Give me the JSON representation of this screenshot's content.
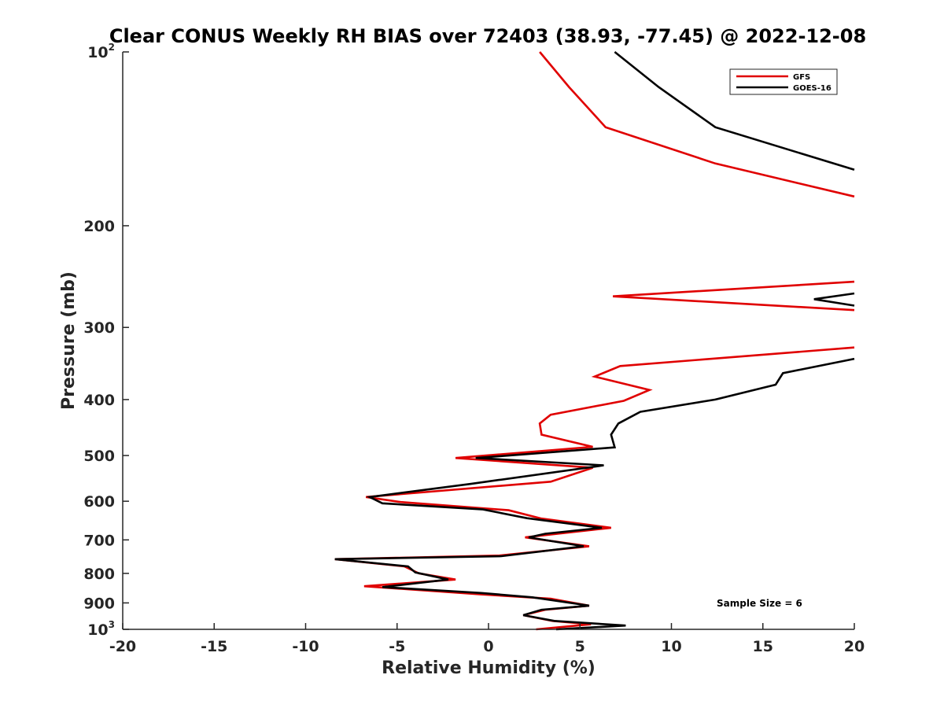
{
  "chart_data": {
    "type": "line",
    "title": "Clear CONUS Weekly RH BIAS over 72403 (38.93, -77.45) @ 2022-12-08",
    "xlabel": "Relative Humidity (%)",
    "ylabel": "Pressure (mb)",
    "xlim": [
      -20,
      20
    ],
    "ylim": [
      100,
      1000
    ],
    "yscale": "log",
    "y_reversed": true,
    "x_ticks": [
      "-20",
      "-15",
      "-10",
      "-5",
      "0",
      "5",
      "10",
      "15",
      "20"
    ],
    "y_ticks": [
      {
        "value": 100,
        "base": "10",
        "exp": "2"
      },
      {
        "value": 200,
        "base": "200",
        "exp": ""
      },
      {
        "value": 300,
        "base": "300",
        "exp": ""
      },
      {
        "value": 400,
        "base": "400",
        "exp": ""
      },
      {
        "value": 500,
        "base": "500",
        "exp": ""
      },
      {
        "value": 600,
        "base": "600",
        "exp": ""
      },
      {
        "value": 700,
        "base": "700",
        "exp": ""
      },
      {
        "value": 800,
        "base": "800",
        "exp": ""
      },
      {
        "value": 900,
        "base": "900",
        "exp": ""
      },
      {
        "value": 1000,
        "base": "10",
        "exp": "3"
      }
    ],
    "legend_position": "top-right",
    "annotation": "Sample Size = 6",
    "series": [
      {
        "name": "GFS",
        "color": "#e00000",
        "points": [
          [
            2.8,
            100
          ],
          [
            4.4,
            115
          ],
          [
            6.4,
            135
          ],
          [
            12.4,
            156
          ],
          [
            20,
            178
          ],
          [
            null,
            null
          ],
          [
            20,
            250
          ],
          [
            6.8,
            265
          ],
          [
            20,
            280
          ],
          [
            null,
            null
          ],
          [
            20,
            325
          ],
          [
            7.2,
            350
          ],
          [
            5.8,
            365
          ],
          [
            8.8,
            385
          ],
          [
            7.4,
            402
          ],
          [
            3.4,
            425
          ],
          [
            2.8,
            440
          ],
          [
            2.9,
            460
          ],
          [
            5.7,
            483
          ],
          [
            -1.8,
            505
          ],
          [
            5.7,
            525
          ],
          [
            3.4,
            555
          ],
          [
            -6.7,
            590
          ],
          [
            -4.8,
            602
          ],
          [
            1.1,
            622
          ],
          [
            2.9,
            643
          ],
          [
            6.7,
            667
          ],
          [
            2,
            693
          ],
          [
            5.5,
            718
          ],
          [
            0.6,
            745
          ],
          [
            -8.4,
            756
          ],
          [
            -4.6,
            778
          ],
          [
            -3.8,
            800
          ],
          [
            -1.8,
            820
          ],
          [
            -6.8,
            842
          ],
          [
            -0.4,
            870
          ],
          [
            3.4,
            885
          ],
          [
            5.5,
            910
          ],
          [
            3.1,
            925
          ],
          [
            1.9,
            945
          ],
          [
            3.5,
            967
          ],
          [
            5.6,
            980
          ],
          [
            2.6,
            1000
          ]
        ]
      },
      {
        "name": "GOES-16",
        "color": "#000000",
        "points": [
          [
            6.9,
            100
          ],
          [
            9.3,
            115
          ],
          [
            12.4,
            135
          ],
          [
            20,
            160
          ],
          [
            null,
            null
          ],
          [
            20,
            262
          ],
          [
            17.8,
            268
          ],
          [
            20,
            275
          ],
          [
            null,
            null
          ],
          [
            20,
            340
          ],
          [
            19.6,
            342
          ],
          [
            16.1,
            360
          ],
          [
            15.7,
            377
          ],
          [
            12.4,
            400
          ],
          [
            8.3,
            420
          ],
          [
            7.1,
            440
          ],
          [
            6.7,
            460
          ],
          [
            6.9,
            484
          ],
          [
            -0.7,
            505
          ],
          [
            6.3,
            520
          ],
          [
            -1,
            560
          ],
          [
            -6.5,
            590
          ],
          [
            -5.8,
            605
          ],
          [
            -0.3,
            620
          ],
          [
            2.1,
            642
          ],
          [
            6.2,
            667
          ],
          [
            3.1,
            683
          ],
          [
            2.2,
            693
          ],
          [
            5.2,
            718
          ],
          [
            0.7,
            747
          ],
          [
            -8.4,
            756
          ],
          [
            -4.4,
            778
          ],
          [
            -4,
            797
          ],
          [
            -2.2,
            820
          ],
          [
            -5.8,
            845
          ],
          [
            -0.4,
            865
          ],
          [
            2.4,
            880
          ],
          [
            5.5,
            910
          ],
          [
            2.9,
            925
          ],
          [
            1.9,
            945
          ],
          [
            3.6,
            967
          ],
          [
            7.5,
            985
          ],
          [
            3.7,
            1000
          ]
        ]
      }
    ]
  }
}
